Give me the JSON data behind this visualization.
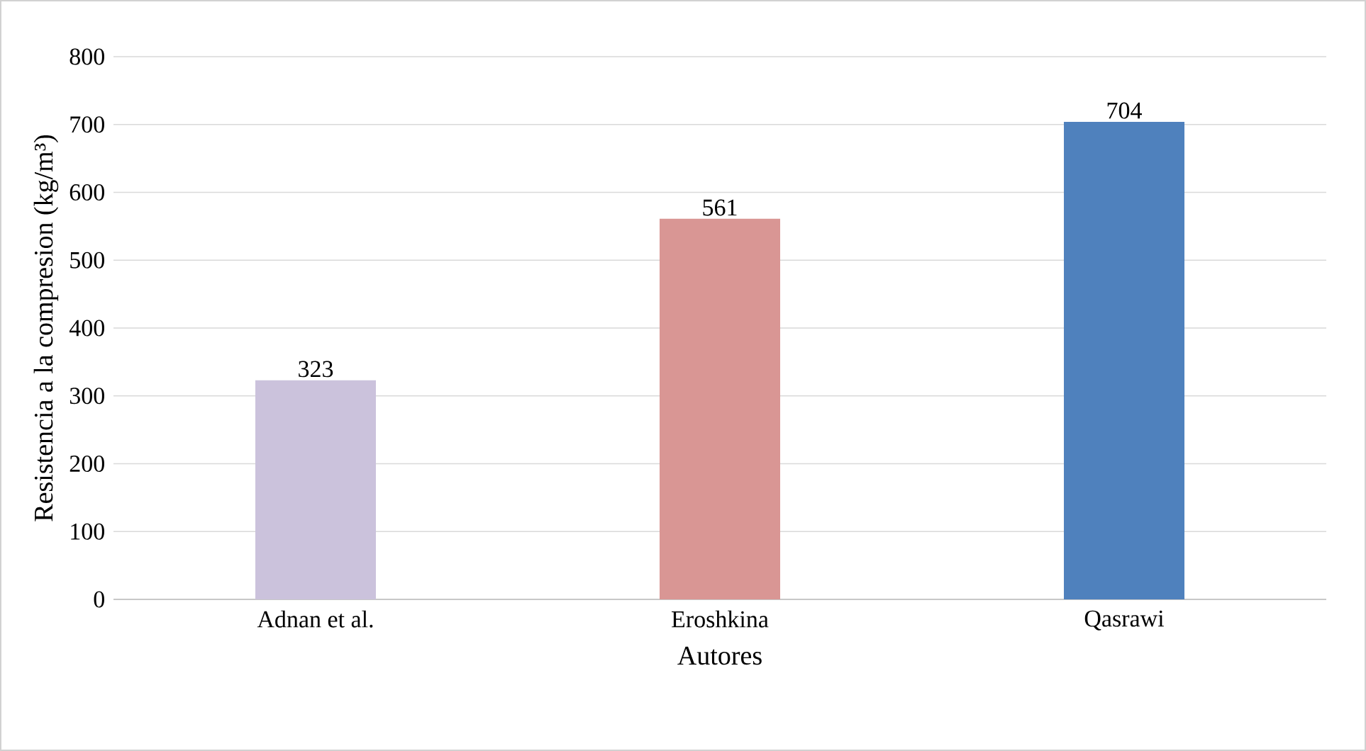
{
  "chart_data": {
    "type": "bar",
    "xlabel": "Autores",
    "ylabel": "Resistencia a la compresion (kg/m³)",
    "categories": [
      "Adnan et al.",
      "Eroshkina",
      "Qasrawi"
    ],
    "values": [
      323,
      561,
      704
    ],
    "colors": [
      "#cbc2dc",
      "#d99694",
      "#4f81bd"
    ],
    "ylim": [
      0,
      800
    ],
    "yticks": [
      0,
      100,
      200,
      300,
      400,
      500,
      600,
      700,
      800
    ],
    "grid": "y",
    "data_labels": true
  }
}
